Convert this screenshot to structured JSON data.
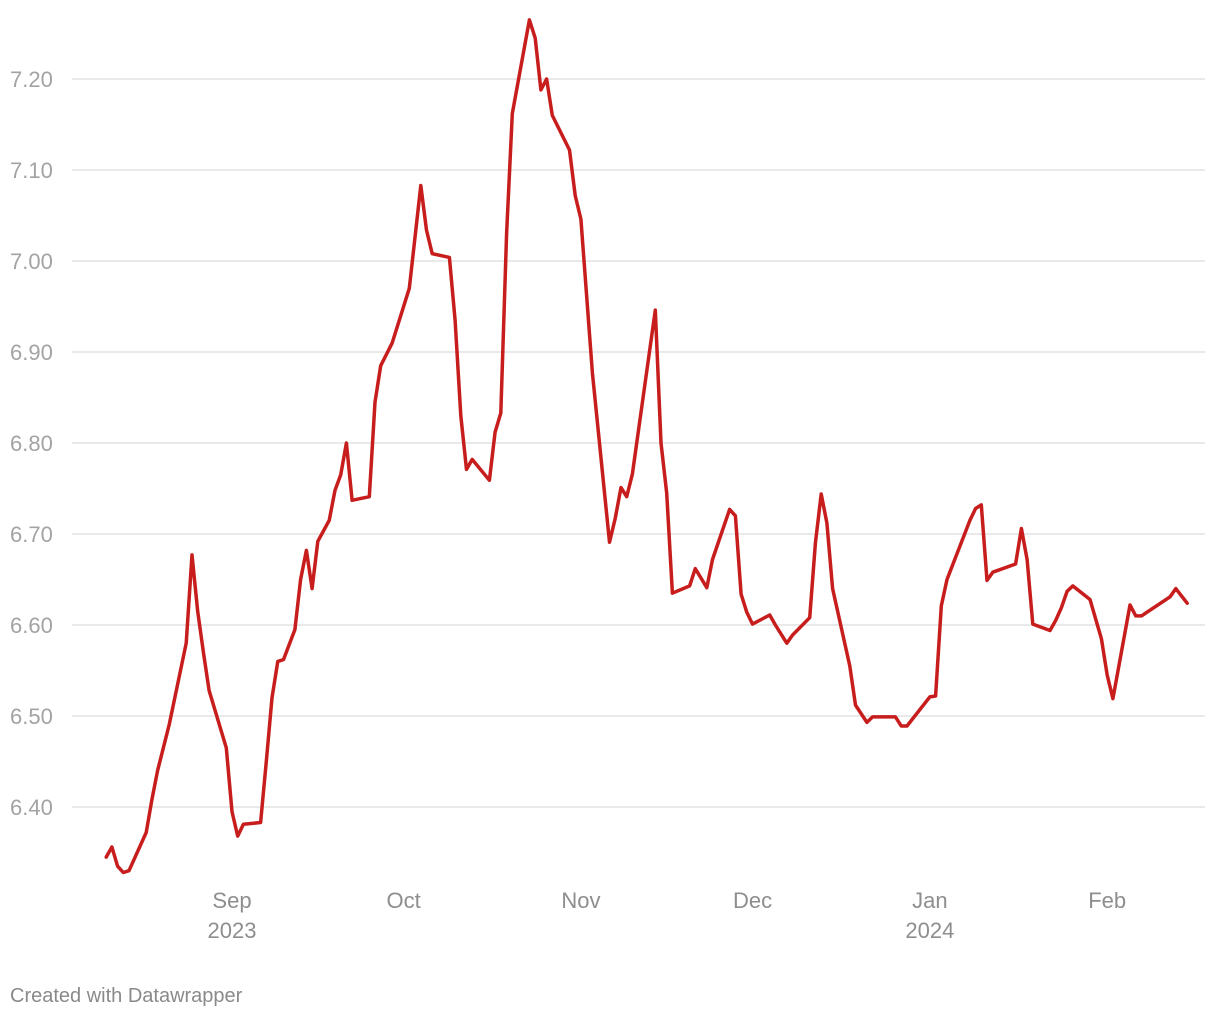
{
  "chart_data": {
    "type": "line",
    "y_ticks": [
      "6.40",
      "6.50",
      "6.60",
      "6.70",
      "6.80",
      "6.90",
      "7.00",
      "7.10",
      "7.20"
    ],
    "y_tick_values": [
      6.4,
      6.5,
      6.6,
      6.7,
      6.8,
      6.9,
      7.0,
      7.1,
      7.2
    ],
    "ylim": [
      6.35,
      7.27
    ],
    "xlim": [
      "2023-08-07",
      "2024-02-14"
    ],
    "x_ticks": [
      {
        "date": "2023-09-01",
        "label": "Sep",
        "sublabel": "2023"
      },
      {
        "date": "2023-10-01",
        "label": "Oct",
        "sublabel": ""
      },
      {
        "date": "2023-11-01",
        "label": "Nov",
        "sublabel": ""
      },
      {
        "date": "2023-12-01",
        "label": "Dec",
        "sublabel": ""
      },
      {
        "date": "2024-01-01",
        "label": "Jan",
        "sublabel": "2024"
      },
      {
        "date": "2024-02-01",
        "label": "Feb",
        "sublabel": ""
      }
    ],
    "grid": true,
    "series": [
      {
        "color": "#c71e1d",
        "points": [
          [
            "2023-08-10",
            6.345
          ],
          [
            "2023-08-11",
            6.356
          ],
          [
            "2023-08-12",
            6.335
          ],
          [
            "2023-08-13",
            6.328
          ],
          [
            "2023-08-14",
            6.33
          ],
          [
            "2023-08-17",
            6.372
          ],
          [
            "2023-08-18",
            6.408
          ],
          [
            "2023-08-19",
            6.44
          ],
          [
            "2023-08-21",
            6.49
          ],
          [
            "2023-08-24",
            6.58
          ],
          [
            "2023-08-25",
            6.677
          ],
          [
            "2023-08-26",
            6.615
          ],
          [
            "2023-08-27",
            6.57
          ],
          [
            "2023-08-28",
            6.528
          ],
          [
            "2023-08-31",
            6.465
          ],
          [
            "2023-09-01",
            6.395
          ],
          [
            "2023-09-02",
            6.368
          ],
          [
            "2023-09-03",
            6.381
          ],
          [
            "2023-09-06",
            6.383
          ],
          [
            "2023-09-07",
            6.45
          ],
          [
            "2023-09-08",
            6.52
          ],
          [
            "2023-09-09",
            6.56
          ],
          [
            "2023-09-10",
            6.562
          ],
          [
            "2023-09-12",
            6.595
          ],
          [
            "2023-09-13",
            6.65
          ],
          [
            "2023-09-14",
            6.682
          ],
          [
            "2023-09-15",
            6.64
          ],
          [
            "2023-09-16",
            6.692
          ],
          [
            "2023-09-18",
            6.715
          ],
          [
            "2023-09-19",
            6.748
          ],
          [
            "2023-09-20",
            6.765
          ],
          [
            "2023-09-21",
            6.8
          ],
          [
            "2023-09-22",
            6.737
          ],
          [
            "2023-09-25",
            6.741
          ],
          [
            "2023-09-26",
            6.845
          ],
          [
            "2023-09-27",
            6.885
          ],
          [
            "2023-09-29",
            6.91
          ],
          [
            "2023-10-02",
            6.97
          ],
          [
            "2023-10-04",
            7.083
          ],
          [
            "2023-10-05",
            7.034
          ],
          [
            "2023-10-06",
            7.008
          ],
          [
            "2023-10-09",
            7.004
          ],
          [
            "2023-10-10",
            6.935
          ],
          [
            "2023-10-11",
            6.83
          ],
          [
            "2023-10-12",
            6.771
          ],
          [
            "2023-10-13",
            6.782
          ],
          [
            "2023-10-16",
            6.759
          ],
          [
            "2023-10-17",
            6.812
          ],
          [
            "2023-10-18",
            6.833
          ],
          [
            "2023-10-19",
            7.03
          ],
          [
            "2023-10-20",
            7.162
          ],
          [
            "2023-10-23",
            7.265
          ],
          [
            "2023-10-24",
            7.245
          ],
          [
            "2023-10-25",
            7.188
          ],
          [
            "2023-10-26",
            7.2
          ],
          [
            "2023-10-27",
            7.16
          ],
          [
            "2023-10-30",
            7.122
          ],
          [
            "2023-10-31",
            7.072
          ],
          [
            "2023-11-01",
            7.046
          ],
          [
            "2023-11-03",
            6.877
          ],
          [
            "2023-11-06",
            6.691
          ],
          [
            "2023-11-07",
            6.717
          ],
          [
            "2023-11-08",
            6.751
          ],
          [
            "2023-11-09",
            6.741
          ],
          [
            "2023-11-10",
            6.766
          ],
          [
            "2023-11-14",
            6.946
          ],
          [
            "2023-11-15",
            6.8
          ],
          [
            "2023-11-16",
            6.745
          ],
          [
            "2023-11-17",
            6.635
          ],
          [
            "2023-11-20",
            6.643
          ],
          [
            "2023-11-21",
            6.662
          ],
          [
            "2023-11-23",
            6.641
          ],
          [
            "2023-11-24",
            6.672
          ],
          [
            "2023-11-27",
            6.727
          ],
          [
            "2023-11-28",
            6.72
          ],
          [
            "2023-11-29",
            6.634
          ],
          [
            "2023-11-30",
            6.614
          ],
          [
            "2023-12-01",
            6.601
          ],
          [
            "2023-12-04",
            6.611
          ],
          [
            "2023-12-05",
            6.6
          ],
          [
            "2023-12-07",
            6.58
          ],
          [
            "2023-12-08",
            6.589
          ],
          [
            "2023-12-11",
            6.608
          ],
          [
            "2023-12-12",
            6.69
          ],
          [
            "2023-12-13",
            6.744
          ],
          [
            "2023-12-14",
            6.712
          ],
          [
            "2023-12-15",
            6.64
          ],
          [
            "2023-12-18",
            6.555
          ],
          [
            "2023-12-19",
            6.512
          ],
          [
            "2023-12-21",
            6.493
          ],
          [
            "2023-12-22",
            6.499
          ],
          [
            "2023-12-26",
            6.499
          ],
          [
            "2023-12-27",
            6.489
          ],
          [
            "2023-12-28",
            6.489
          ],
          [
            "2024-01-01",
            6.521
          ],
          [
            "2024-01-02",
            6.522
          ],
          [
            "2024-01-03",
            6.621
          ],
          [
            "2024-01-04",
            6.65
          ],
          [
            "2024-01-08",
            6.715
          ],
          [
            "2024-01-09",
            6.728
          ],
          [
            "2024-01-10",
            6.732
          ],
          [
            "2024-01-11",
            6.649
          ],
          [
            "2024-01-12",
            6.658
          ],
          [
            "2024-01-16",
            6.667
          ],
          [
            "2024-01-17",
            6.706
          ],
          [
            "2024-01-18",
            6.672
          ],
          [
            "2024-01-19",
            6.601
          ],
          [
            "2024-01-22",
            6.594
          ],
          [
            "2024-01-23",
            6.605
          ],
          [
            "2024-01-24",
            6.619
          ],
          [
            "2024-01-25",
            6.637
          ],
          [
            "2024-01-26",
            6.643
          ],
          [
            "2024-01-29",
            6.628
          ],
          [
            "2024-01-31",
            6.585
          ],
          [
            "2024-02-01",
            6.545
          ],
          [
            "2024-02-02",
            6.519
          ],
          [
            "2024-02-05",
            6.622
          ],
          [
            "2024-02-06",
            6.61
          ],
          [
            "2024-02-07",
            6.61
          ],
          [
            "2024-02-12",
            6.631
          ],
          [
            "2024-02-13",
            6.64
          ],
          [
            "2024-02-14",
            6.632
          ],
          [
            "2024-02-15",
            6.624
          ]
        ]
      }
    ]
  },
  "footer": {
    "credit": "Created with Datawrapper"
  }
}
